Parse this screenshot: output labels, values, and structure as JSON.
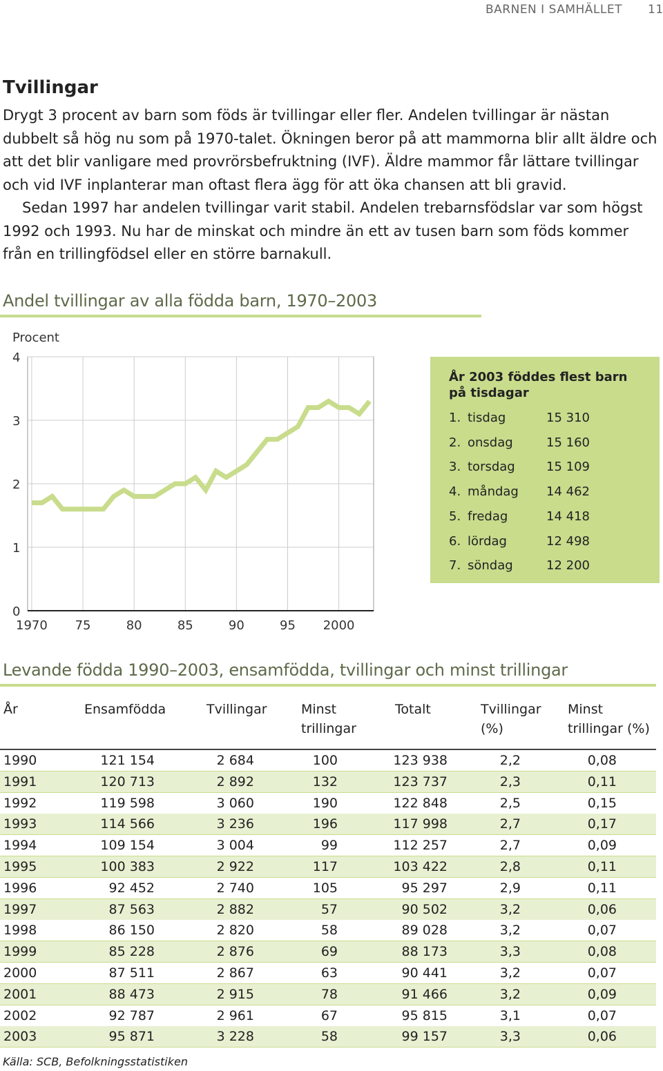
{
  "header": {
    "section": "BARNEN I SAMHÄLLET",
    "page": "11"
  },
  "article": {
    "title": "Tvillingar",
    "paragraphs": [
      "Drygt 3 procent av barn som föds är tvillingar eller fler. Andelen tvillingar är nästan dubbelt så hög nu som på 1970-talet. Ökningen beror på att mammorna blir allt äldre och att det blir vanligare med provrörsbefruktning (IVF). Äldre mammor får lättare tvillingar och vid IVF inplanterar man oftast flera ägg för att öka chansen att bli gravid.",
      "Sedan 1997 har andelen tvillingar varit stabil. Andelen trebarnsfödslar var som högst 1992 och 1993. Nu har de minskat och mindre än ett av tusen barn som föds kommer från en trillingfödsel eller en större barnakull."
    ]
  },
  "chart_data": {
    "type": "line",
    "title": "Andel tvillingar av alla födda barn, 1970–2003",
    "ylabel": "Procent",
    "x": [
      1970,
      1971,
      1972,
      1973,
      1974,
      1975,
      1976,
      1977,
      1978,
      1979,
      1980,
      1981,
      1982,
      1983,
      1984,
      1985,
      1986,
      1987,
      1988,
      1989,
      1990,
      1991,
      1992,
      1993,
      1994,
      1995,
      1996,
      1997,
      1998,
      1999,
      2000,
      2001,
      2002,
      2003
    ],
    "values": [
      1.7,
      1.7,
      1.8,
      1.6,
      1.6,
      1.6,
      1.6,
      1.6,
      1.8,
      1.9,
      1.8,
      1.8,
      1.8,
      1.9,
      2.0,
      2.0,
      2.1,
      1.9,
      2.2,
      2.1,
      2.2,
      2.3,
      2.5,
      2.7,
      2.7,
      2.8,
      2.9,
      3.2,
      3.2,
      3.3,
      3.2,
      3.2,
      3.1,
      3.3
    ],
    "color": "#c8dc8c",
    "xlim": [
      1969.6,
      2003.4
    ],
    "xticks": [
      1970,
      {
        "value": 1975,
        "label": "75"
      },
      {
        "value": 1980,
        "label": "80"
      },
      {
        "value": 1985,
        "label": "85"
      },
      {
        "value": 1990,
        "label": "90"
      },
      {
        "value": 1995,
        "label": "95"
      },
      2000
    ],
    "ylim": [
      0,
      4
    ],
    "yticks": [
      0,
      1,
      2,
      3,
      4
    ],
    "grid": true
  },
  "box": {
    "title": "År 2003 föddes flest barn på tisdagar",
    "items": [
      [
        "1.",
        "tisdag",
        "15 310"
      ],
      [
        "2.",
        "onsdag",
        "15 160"
      ],
      [
        "3.",
        "torsdag",
        "15 109"
      ],
      [
        "4.",
        "måndag",
        "14 462"
      ],
      [
        "5.",
        "fredag",
        "14 418"
      ],
      [
        "6.",
        "lördag",
        "12 498"
      ],
      [
        "7.",
        "söndag",
        "12 200"
      ]
    ]
  },
  "table": {
    "title": "Levande födda 1990–2003, ensamfödda, tvillingar och minst trillingar",
    "columns": [
      "År",
      "Ensamfödda",
      "Tvillingar",
      "Minst trillingar",
      "Totalt",
      "Tvillingar (%)",
      "Minst trillingar (%)"
    ],
    "rows": [
      [
        "1990",
        "121 154",
        "2 684",
        "100",
        "123 938",
        "2,2",
        "0,08"
      ],
      [
        "1991",
        "120 713",
        "2 892",
        "132",
        "123 737",
        "2,3",
        "0,11"
      ],
      [
        "1992",
        "119 598",
        "3 060",
        "190",
        "122 848",
        "2,5",
        "0,15"
      ],
      [
        "1993",
        "114 566",
        "3 236",
        "196",
        "117 998",
        "2,7",
        "0,17"
      ],
      [
        "1994",
        "109 154",
        "3 004",
        "99",
        "112 257",
        "2,7",
        "0,09"
      ],
      [
        "1995",
        "100 383",
        "2 922",
        "117",
        "103 422",
        "2,8",
        "0,11"
      ],
      [
        "1996",
        "92 452",
        "2 740",
        "105",
        "95 297",
        "2,9",
        "0,11"
      ],
      [
        "1997",
        "87 563",
        "2 882",
        "57",
        "90 502",
        "3,2",
        "0,06"
      ],
      [
        "1998",
        "86 150",
        "2 820",
        "58",
        "89 028",
        "3,2",
        "0,07"
      ],
      [
        "1999",
        "85 228",
        "2 876",
        "69",
        "88 173",
        "3,3",
        "0,08"
      ],
      [
        "2000",
        "87 511",
        "2 867",
        "63",
        "90 441",
        "3,2",
        "0,07"
      ],
      [
        "2001",
        "88 473",
        "2 915",
        "78",
        "91 466",
        "3,2",
        "0,09"
      ],
      [
        "2002",
        "92 787",
        "2 961",
        "67",
        "95 815",
        "3,1",
        "0,07"
      ],
      [
        "2003",
        "95 871",
        "3 228",
        "58",
        "99 157",
        "3,3",
        "0,06"
      ]
    ],
    "source": "Källa: SCB, Befolkningsstatistiken"
  }
}
